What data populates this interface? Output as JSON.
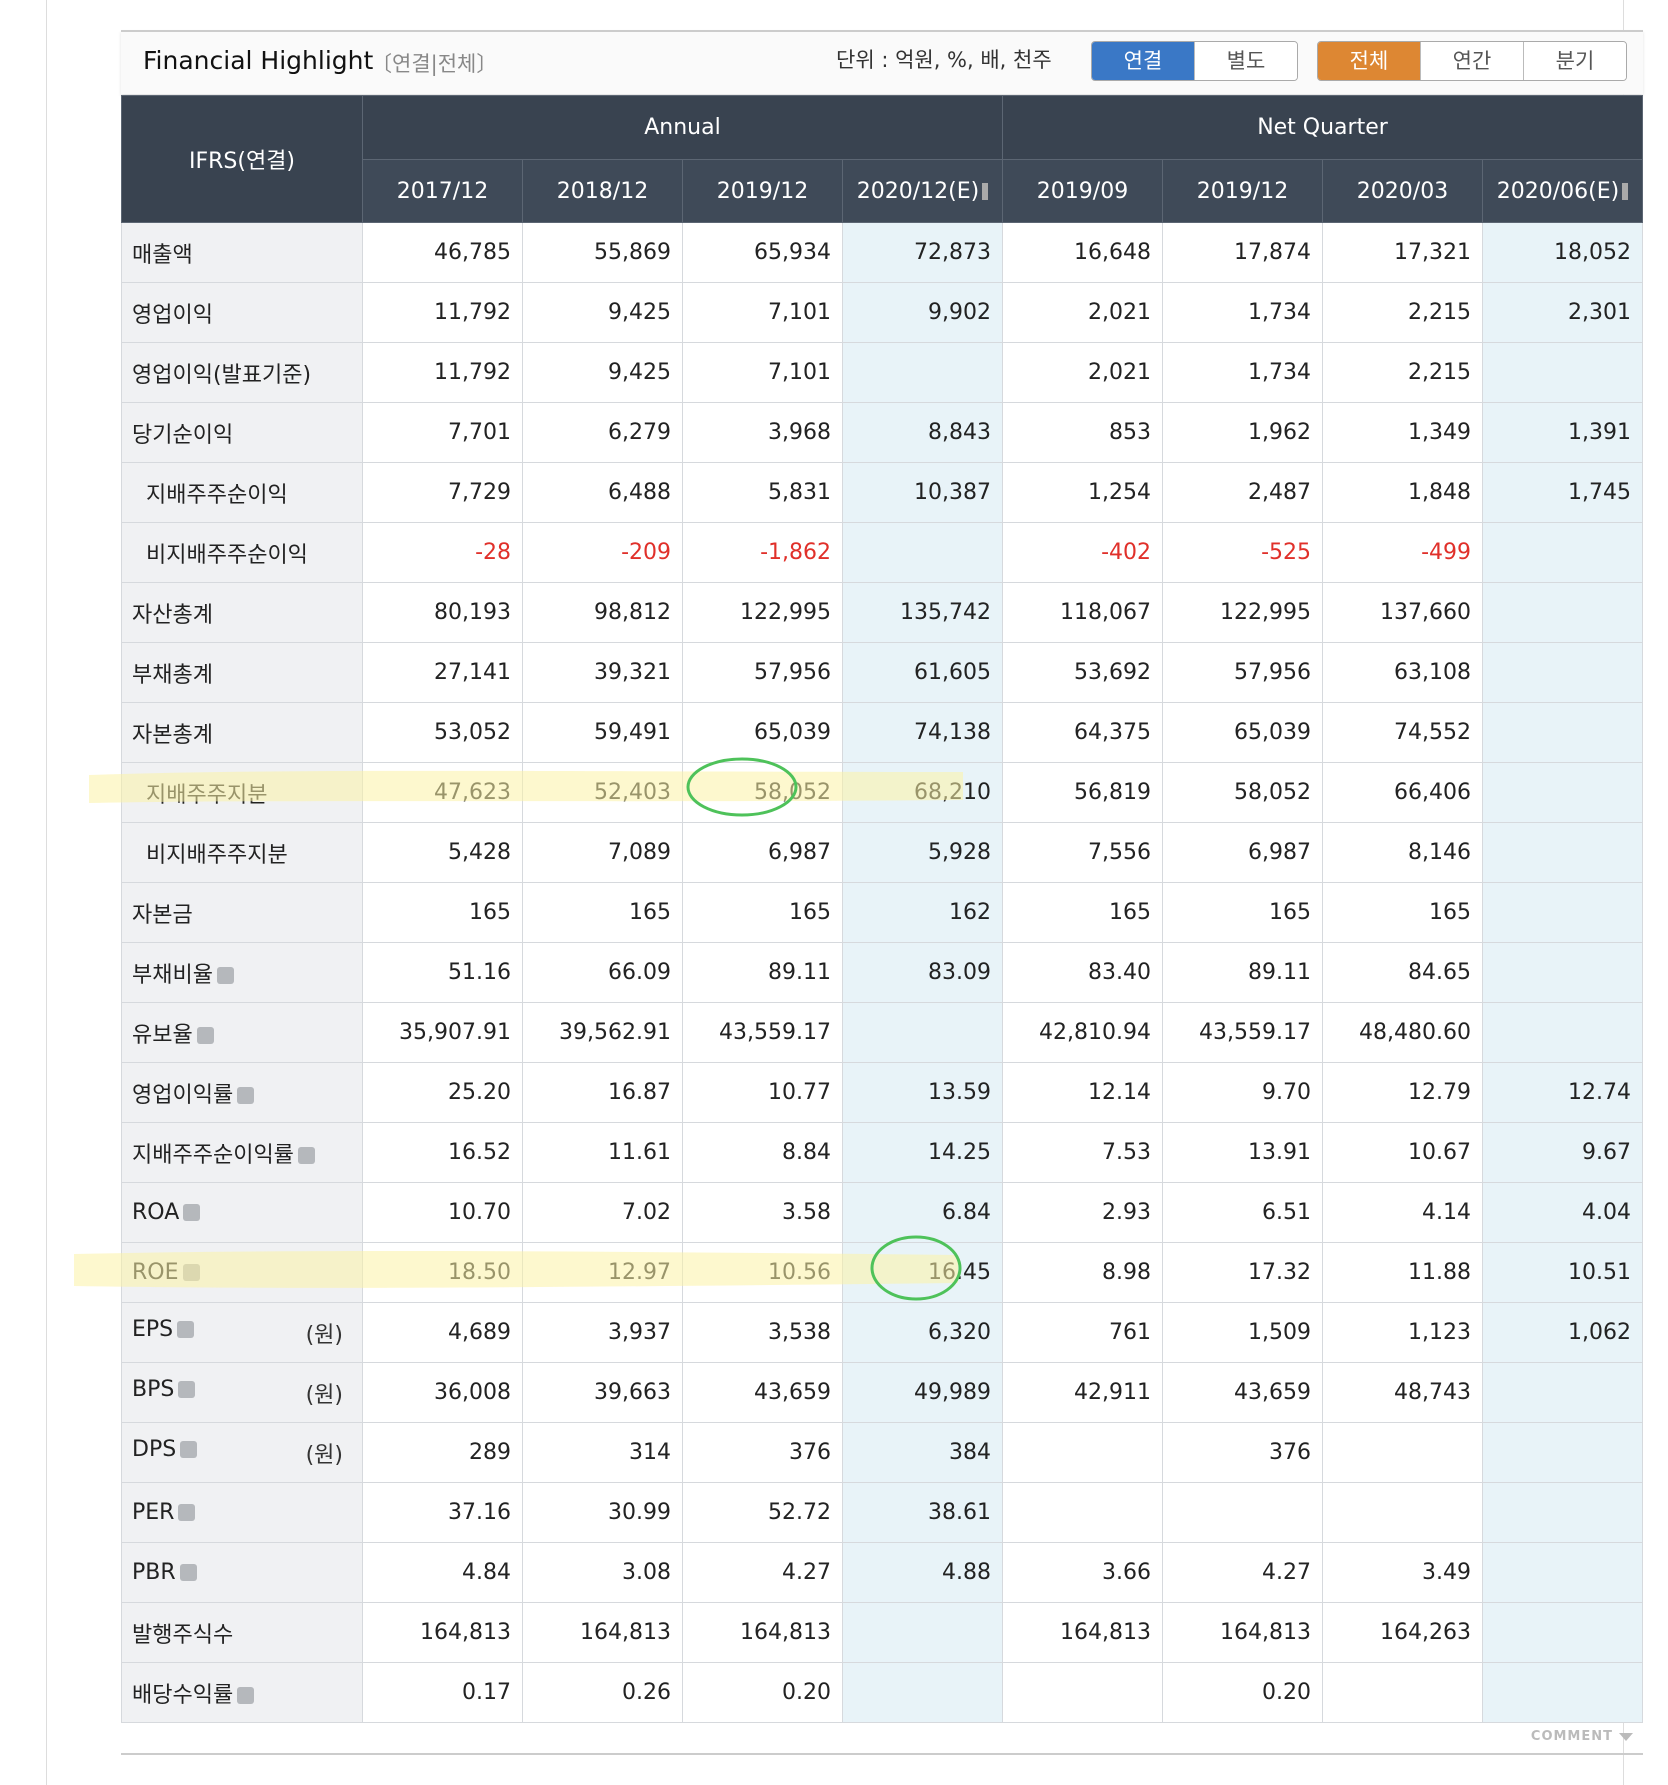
{
  "header": {
    "title": "Financial Highlight",
    "subtitle": "〔연결|전체〕",
    "unit": "단위 : 억원, %, 배, 천주",
    "toggles": [
      {
        "label": "연결",
        "active": true
      },
      {
        "label": "별도",
        "active": false
      }
    ],
    "periods": [
      {
        "label": "전체",
        "active": true
      },
      {
        "label": "연간",
        "active": false
      },
      {
        "label": "분기",
        "active": false
      }
    ]
  },
  "table": {
    "corner": "IFRS(연결)",
    "groups": [
      {
        "label": "Annual",
        "span": 4
      },
      {
        "label": "Net Quarter",
        "span": 4
      }
    ],
    "columns": [
      {
        "label": "2017/12",
        "estimate": false
      },
      {
        "label": "2018/12",
        "estimate": false
      },
      {
        "label": "2019/12",
        "estimate": false
      },
      {
        "label": "2020/12(E)",
        "estimate": true
      },
      {
        "label": "2019/09",
        "estimate": false
      },
      {
        "label": "2019/12",
        "estimate": false
      },
      {
        "label": "2020/03",
        "estimate": false
      },
      {
        "label": "2020/06(E)",
        "estimate": true
      }
    ],
    "rows": [
      {
        "label": "매출액",
        "values": [
          "46,785",
          "55,869",
          "65,934",
          "72,873",
          "16,648",
          "17,874",
          "17,321",
          "18,052"
        ]
      },
      {
        "label": "영업이익",
        "values": [
          "11,792",
          "9,425",
          "7,101",
          "9,902",
          "2,021",
          "1,734",
          "2,215",
          "2,301"
        ]
      },
      {
        "label": "영업이익(발표기준)",
        "values": [
          "11,792",
          "9,425",
          "7,101",
          null,
          "2,021",
          "1,734",
          "2,215",
          null
        ]
      },
      {
        "label": "당기순이익",
        "values": [
          "7,701",
          "6,279",
          "3,968",
          "8,843",
          "853",
          "1,962",
          "1,349",
          "1,391"
        ]
      },
      {
        "label": "지배주주순이익",
        "indent": true,
        "values": [
          "7,729",
          "6,488",
          "5,831",
          "10,387",
          "1,254",
          "2,487",
          "1,848",
          "1,745"
        ]
      },
      {
        "label": "비지배주주순이익",
        "indent": true,
        "values": [
          "-28",
          "-209",
          "-1,862",
          null,
          "-402",
          "-525",
          "-499",
          null
        ]
      },
      {
        "label": "자산총계",
        "values": [
          "80,193",
          "98,812",
          "122,995",
          "135,742",
          "118,067",
          "122,995",
          "137,660",
          null
        ]
      },
      {
        "label": "부채총계",
        "values": [
          "27,141",
          "39,321",
          "57,956",
          "61,605",
          "53,692",
          "57,956",
          "63,108",
          null
        ]
      },
      {
        "label": "자본총계",
        "values": [
          "53,052",
          "59,491",
          "65,039",
          "74,138",
          "64,375",
          "65,039",
          "74,552",
          null
        ]
      },
      {
        "label": "지배주주지분",
        "indent": true,
        "values": [
          "47,623",
          "52,403",
          "58,052",
          "68,210",
          "56,819",
          "58,052",
          "66,406",
          null
        ]
      },
      {
        "label": "비지배주주지분",
        "indent": true,
        "values": [
          "5,428",
          "7,089",
          "6,987",
          "5,928",
          "7,556",
          "6,987",
          "8,146",
          null
        ]
      },
      {
        "label": "자본금",
        "values": [
          "165",
          "165",
          "165",
          "162",
          "165",
          "165",
          "165",
          null
        ]
      },
      {
        "label": "부채비율",
        "help": true,
        "values": [
          "51.16",
          "66.09",
          "89.11",
          "83.09",
          "83.40",
          "89.11",
          "84.65",
          null
        ]
      },
      {
        "label": "유보율",
        "help": true,
        "values": [
          "35,907.91",
          "39,562.91",
          "43,559.17",
          null,
          "42,810.94",
          "43,559.17",
          "48,480.60",
          null
        ]
      },
      {
        "label": "영업이익률",
        "help": true,
        "values": [
          "25.20",
          "16.87",
          "10.77",
          "13.59",
          "12.14",
          "9.70",
          "12.79",
          "12.74"
        ]
      },
      {
        "label": "지배주주순이익률",
        "help": true,
        "values": [
          "16.52",
          "11.61",
          "8.84",
          "14.25",
          "7.53",
          "13.91",
          "10.67",
          "9.67"
        ]
      },
      {
        "label": "ROA",
        "help": true,
        "values": [
          "10.70",
          "7.02",
          "3.58",
          "6.84",
          "2.93",
          "6.51",
          "4.14",
          "4.04"
        ]
      },
      {
        "label": "ROE",
        "help": true,
        "values": [
          "18.50",
          "12.97",
          "10.56",
          "16.45",
          "8.98",
          "17.32",
          "11.88",
          "10.51"
        ]
      },
      {
        "label": "EPS",
        "help": true,
        "unit": "(원)",
        "values": [
          "4,689",
          "3,937",
          "3,538",
          "6,320",
          "761",
          "1,509",
          "1,123",
          "1,062"
        ]
      },
      {
        "label": "BPS",
        "help": true,
        "unit": "(원)",
        "values": [
          "36,008",
          "39,663",
          "43,659",
          "49,989",
          "42,911",
          "43,659",
          "48,743",
          null
        ]
      },
      {
        "label": "DPS",
        "help": true,
        "unit": "(원)",
        "values": [
          "289",
          "314",
          "376",
          "384",
          null,
          "376",
          null,
          null
        ]
      },
      {
        "label": "PER",
        "help": true,
        "values": [
          "37.16",
          "30.99",
          "52.72",
          "38.61",
          null,
          null,
          null,
          null
        ]
      },
      {
        "label": "PBR",
        "help": true,
        "values": [
          "4.84",
          "3.08",
          "4.27",
          "4.88",
          "3.66",
          "4.27",
          "3.49",
          null
        ]
      },
      {
        "label": "발행주식수",
        "values": [
          "164,813",
          "164,813",
          "164,813",
          null,
          "164,813",
          "164,813",
          "164,263",
          null
        ]
      },
      {
        "label": "배당수익률",
        "help": true,
        "values": [
          "0.17",
          "0.26",
          "0.20",
          null,
          null,
          "0.20",
          null,
          null
        ]
      }
    ]
  },
  "footer": {
    "comment": "COMMENT"
  }
}
